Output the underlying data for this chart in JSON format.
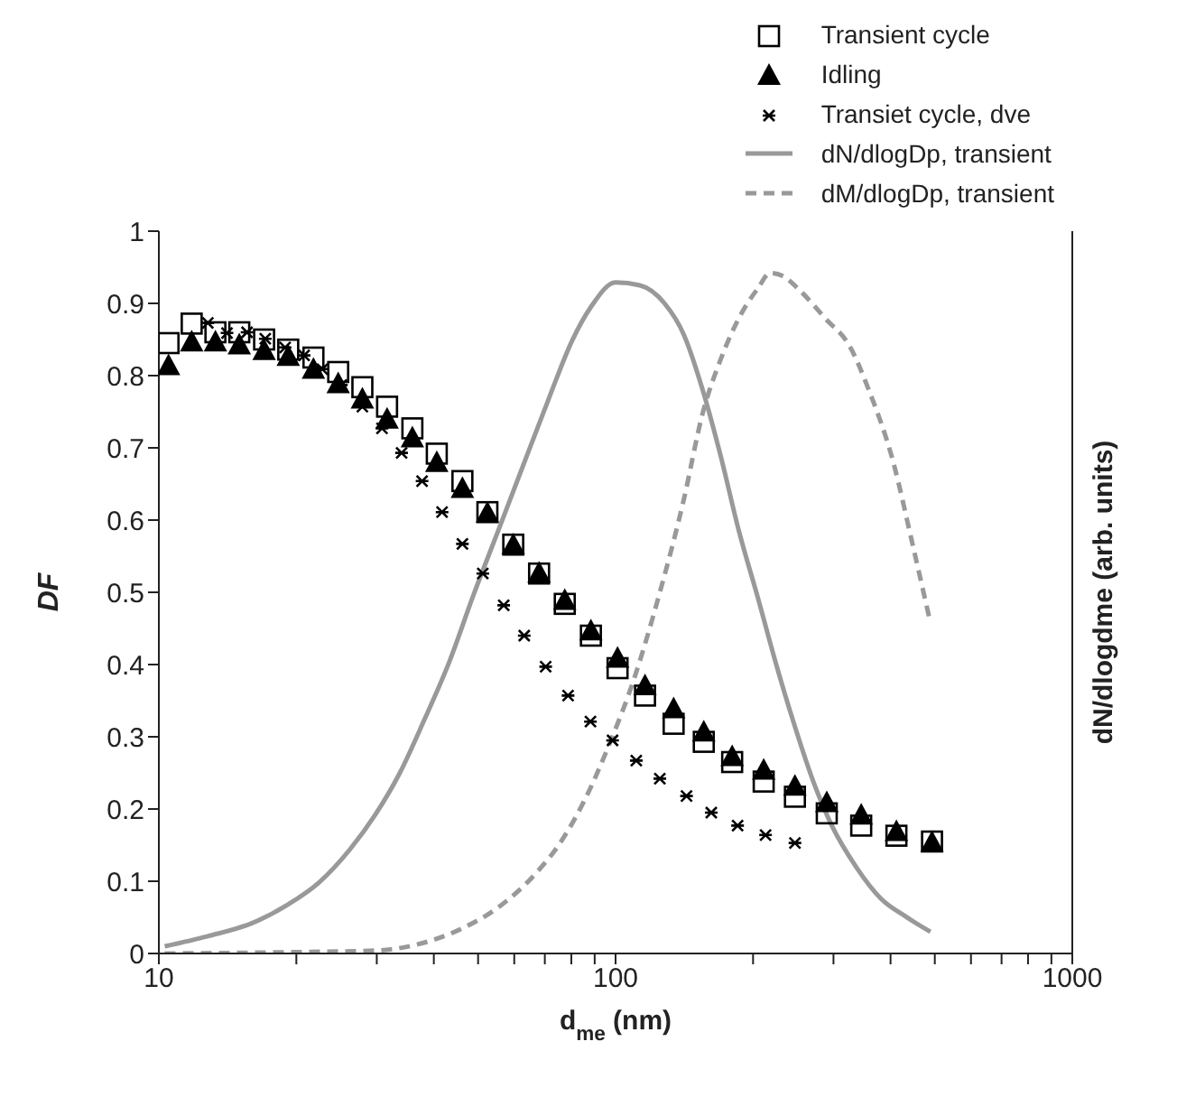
{
  "chart_data": {
    "type": "scatter",
    "xlabel": "d$_{me}$ (nm)",
    "ylabel": "DF",
    "y2label": "dN/dlogdme (arb. units)",
    "log": "x",
    "xlim": [
      10,
      1000
    ],
    "xticks": [
      10,
      {
        "value": 20,
        "label": null
      },
      {
        "value": 30,
        "label": null
      },
      {
        "value": 40,
        "label": null
      },
      {
        "value": 50,
        "label": null
      },
      {
        "value": 60,
        "label": null
      },
      {
        "value": 70,
        "label": null
      },
      {
        "value": 80,
        "label": null
      },
      {
        "value": 90,
        "label": null
      },
      100,
      {
        "value": 200,
        "label": null
      },
      {
        "value": 300,
        "label": null
      },
      {
        "value": 400,
        "label": null
      },
      {
        "value": 500,
        "label": null
      },
      {
        "value": 600,
        "label": null
      },
      {
        "value": 700,
        "label": null
      },
      {
        "value": 800,
        "label": null
      },
      {
        "value": 900,
        "label": null
      },
      1000
    ],
    "ylim": [
      0,
      1
    ],
    "yticks": [
      0,
      0.1,
      0.2,
      0.3,
      0.4,
      0.5,
      0.6,
      0.7,
      0.8,
      0.9,
      1
    ],
    "legend": "top right",
    "series": [
      {
        "name": "Transient cycle",
        "color": "#000000",
        "marker": "square",
        "x": [
          10.5,
          11.8,
          13.3,
          15.0,
          17.0,
          19.2,
          21.8,
          24.7,
          27.9,
          31.6,
          35.9,
          40.6,
          46.2,
          52.4,
          59.7,
          68.0,
          77.4,
          88.3,
          101,
          116,
          134,
          156,
          180,
          211,
          247,
          290,
          345,
          412,
          493
        ],
        "values": [
          0.845,
          0.872,
          0.86,
          0.86,
          0.85,
          0.836,
          0.825,
          0.805,
          0.784,
          0.757,
          0.727,
          0.692,
          0.654,
          0.611,
          0.566,
          0.526,
          0.484,
          0.44,
          0.395,
          0.357,
          0.318,
          0.293,
          0.265,
          0.238,
          0.217,
          0.194,
          0.177,
          0.163,
          0.155
        ]
      },
      {
        "name": "Idling",
        "color": "#000000",
        "marker": "triangle",
        "x": [
          10.5,
          11.8,
          13.3,
          15.0,
          17.0,
          19.2,
          21.8,
          24.7,
          27.9,
          31.6,
          35.9,
          40.6,
          46.2,
          52.4,
          59.7,
          68.0,
          77.4,
          88.3,
          101,
          116,
          134,
          156,
          180,
          211,
          247,
          290,
          345,
          412,
          493
        ],
        "values": [
          0.813,
          0.846,
          0.846,
          0.842,
          0.834,
          0.826,
          0.808,
          0.788,
          0.767,
          0.739,
          0.713,
          0.679,
          0.643,
          0.609,
          0.565,
          0.526,
          0.488,
          0.446,
          0.408,
          0.37,
          0.338,
          0.306,
          0.272,
          0.253,
          0.231,
          0.208,
          0.191,
          0.168,
          0.153
        ]
      },
      {
        "name": "Transiet cycle, dve",
        "color": "#000000",
        "marker": "cross",
        "x": [
          12.8,
          14.1,
          15.6,
          17.1,
          18.9,
          20.8,
          22.8,
          25.1,
          27.9,
          30.8,
          34.0,
          37.7,
          41.7,
          46.2,
          51.2,
          56.9,
          63.1,
          70.3,
          78.7,
          88.1,
          98.5,
          111,
          125,
          143,
          162,
          185,
          213,
          247
        ],
        "values": [
          0.873,
          0.859,
          0.86,
          0.851,
          0.839,
          0.828,
          0.809,
          0.787,
          0.757,
          0.727,
          0.693,
          0.654,
          0.611,
          0.567,
          0.526,
          0.482,
          0.44,
          0.397,
          0.357,
          0.321,
          0.295,
          0.267,
          0.242,
          0.218,
          0.195,
          0.177,
          0.164,
          0.153
        ]
      },
      {
        "name": "dN/dlogDp, transient",
        "type": "line",
        "color": "#999999",
        "marker": "none",
        "line_style": "solid",
        "x": [
          10.3,
          12.8,
          16.0,
          19.2,
          22.4,
          26.2,
          29.7,
          33.7,
          38.1,
          43.2,
          48.9,
          55.4,
          62.7,
          71.0,
          80.4,
          88.3,
          100,
          113,
          128,
          141,
          155,
          170,
          186,
          205,
          225,
          247,
          271,
          297,
          337,
          381,
          432,
          489
        ],
        "values": [
          0.01,
          0.024,
          0.042,
          0.068,
          0.098,
          0.144,
          0.191,
          0.25,
          0.323,
          0.403,
          0.497,
          0.586,
          0.675,
          0.764,
          0.849,
          0.895,
          0.929,
          0.925,
          0.9,
          0.857,
          0.781,
          0.688,
          0.586,
          0.492,
          0.399,
          0.314,
          0.238,
          0.178,
          0.119,
          0.076,
          0.051,
          0.03
        ]
      },
      {
        "name": "dM/dlogDp, transient",
        "type": "line",
        "color": "#999999",
        "marker": "none",
        "line_style": "dashed",
        "x": [
          10.3,
          20.5,
          29.7,
          38.1,
          45.9,
          55.4,
          66.7,
          75.6,
          85.5,
          96.8,
          110,
          124,
          141,
          155,
          170,
          186,
          205,
          218,
          232,
          254,
          288,
          326,
          358,
          406,
          446,
          489
        ],
        "values": [
          0,
          0.002,
          0.004,
          0.015,
          0.034,
          0.064,
          0.11,
          0.153,
          0.212,
          0.289,
          0.382,
          0.492,
          0.628,
          0.747,
          0.823,
          0.879,
          0.921,
          0.942,
          0.938,
          0.917,
          0.879,
          0.84,
          0.781,
          0.679,
          0.569,
          0.458
        ]
      }
    ]
  }
}
